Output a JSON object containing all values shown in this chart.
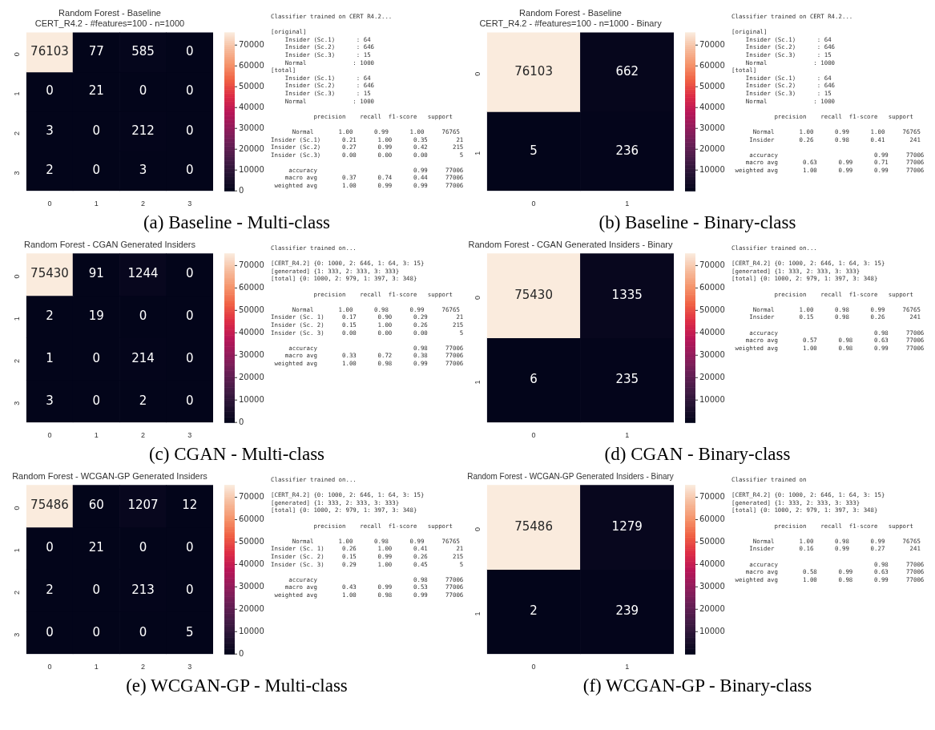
{
  "chart_data": [
    {
      "type": "heatmap",
      "title": "Random Forest - Baseline",
      "subtitle": "CERT_R4.2 - #features=100 - n=1000",
      "categories": [
        "0",
        "1",
        "2",
        "3"
      ],
      "y_categories": [
        "0",
        "1",
        "2",
        "3"
      ],
      "cells": [
        [
          76103,
          77,
          585,
          0
        ],
        [
          0,
          21,
          0,
          0
        ],
        [
          3,
          0,
          212,
          0
        ],
        [
          2,
          0,
          3,
          0
        ]
      ],
      "data_labels": true,
      "clim": [
        0,
        76103
      ],
      "cticks": [
        0,
        10000,
        20000,
        30000,
        40000,
        50000,
        60000,
        70000
      ],
      "annotations": [
        "(a) Baseline - Multi-class"
      ]
    },
    {
      "type": "other",
      "title": "Classifier trained on CERT R4.2...",
      "annotations": [
        "[original]\n    Insider (Sc.1)      : 64\n    Insider (Sc.2)      : 646\n    Insider (Sc.3)      : 15\n    Normal             : 1000\n[total]\n    Insider (Sc.1)      : 64\n    Insider (Sc.2)      : 646\n    Insider (Sc.3)      : 15\n    Normal             : 1000",
        "            precision    recall  f1-score   support",
        "      Normal       1.00      0.99      1.00     76765\nInsider (Sc.1)      0.21      1.00      0.35        21\nInsider (Sc.2)      0.27      0.99      0.42       215\nInsider (Sc.3)      0.00      0.00      0.00         5",
        "     accuracy                           0.99     77006\n    macro avg       0.37      0.74      0.44     77006\n weighted avg       1.00      0.99      0.99     77006"
      ]
    },
    {
      "type": "heatmap",
      "title": "Random Forest - Baseline",
      "subtitle": "CERT_R4.2 - #features=100 - n=1000 - Binary",
      "categories": [
        "0",
        "1"
      ],
      "y_categories": [
        "0",
        "1"
      ],
      "cells": [
        [
          76103,
          662
        ],
        [
          5,
          236
        ]
      ],
      "data_labels": true,
      "clim": [
        5,
        76103
      ],
      "cticks": [
        10000,
        20000,
        30000,
        40000,
        50000,
        60000,
        70000
      ],
      "annotations": [
        "(b) Baseline - Binary-class"
      ]
    },
    {
      "type": "other",
      "title": "Classifier trained on CERT R4.2...",
      "annotations": [
        "[original]\n    Insider (Sc.1)      : 64\n    Insider (Sc.2)      : 646\n    Insider (Sc.3)      : 15\n    Normal             : 1000\n[total]\n    Insider (Sc.1)      : 64\n    Insider (Sc.2)      : 646\n    Insider (Sc.3)      : 15\n    Normal             : 1000",
        "            precision    recall  f1-score   support",
        "      Normal       1.00      0.99      1.00     76765\n     Insider       0.26      0.98      0.41       241",
        "     accuracy                           0.99     77006\n    macro avg       0.63      0.99      0.71     77006\n weighted avg       1.00      0.99      0.99     77006"
      ]
    },
    {
      "type": "heatmap",
      "title": "Random Forest - CGAN Generated Insiders",
      "categories": [
        "0",
        "1",
        "2",
        "3"
      ],
      "y_categories": [
        "0",
        "1",
        "2",
        "3"
      ],
      "cells": [
        [
          75430,
          91,
          1244,
          0
        ],
        [
          2,
          19,
          0,
          0
        ],
        [
          1,
          0,
          214,
          0
        ],
        [
          3,
          0,
          2,
          0
        ]
      ],
      "data_labels": true,
      "clim": [
        0,
        75430
      ],
      "cticks": [
        0,
        10000,
        20000,
        30000,
        40000,
        50000,
        60000,
        70000
      ],
      "annotations": [
        "(c) CGAN - Multi-class"
      ]
    },
    {
      "type": "other",
      "title": "Classifier trained on...",
      "annotations": [
        "[CERT_R4.2] {0: 1000, 2: 646, 1: 64, 3: 15}\n[generated] {1: 333, 2: 333, 3: 333}\n[total] {0: 1000, 2: 979, 1: 397, 3: 348}",
        "            precision    recall  f1-score   support",
        "      Normal       1.00      0.98      0.99     76765\nInsider (Sc. 1)     0.17      0.90      0.29        21\nInsider (Sc. 2)     0.15      1.00      0.26       215\nInsider (Sc. 3)     0.00      0.00      0.00         5",
        "     accuracy                           0.98     77006\n    macro avg       0.33      0.72      0.38     77006\n weighted avg       1.00      0.98      0.99     77006"
      ]
    },
    {
      "type": "heatmap",
      "title": "Random Forest - CGAN Generated Insiders - Binary",
      "categories": [
        "0",
        "1"
      ],
      "y_categories": [
        "0",
        "1"
      ],
      "cells": [
        [
          75430,
          1335
        ],
        [
          6,
          235
        ]
      ],
      "data_labels": true,
      "clim": [
        6,
        75430
      ],
      "cticks": [
        10000,
        20000,
        30000,
        40000,
        50000,
        60000,
        70000
      ],
      "annotations": [
        "(d) CGAN - Binary-class"
      ]
    },
    {
      "type": "other",
      "title": "Classifier trained on...",
      "annotations": [
        "[CERT_R4.2] {0: 1000, 2: 646, 1: 64, 3: 15}\n[generated] {1: 333, 2: 333, 3: 333}\n[total] {0: 1000, 2: 979, 1: 397, 3: 348}",
        "            precision    recall  f1-score   support",
        "      Normal       1.00      0.98      0.99     76765\n     Insider       0.15      0.98      0.26       241",
        "     accuracy                           0.98     77006\n    macro avg       0.57      0.98      0.63     77006\n weighted avg       1.00      0.98      0.99     77006"
      ]
    },
    {
      "type": "heatmap",
      "title": "Random Forest - WCGAN-GP Generated Insiders",
      "categories": [
        "0",
        "1",
        "2",
        "3"
      ],
      "y_categories": [
        "0",
        "1",
        "2",
        "3"
      ],
      "cells": [
        [
          75486,
          60,
          1207,
          12
        ],
        [
          0,
          21,
          0,
          0
        ],
        [
          2,
          0,
          213,
          0
        ],
        [
          0,
          0,
          0,
          5
        ]
      ],
      "data_labels": true,
      "clim": [
        0,
        75486
      ],
      "cticks": [
        0,
        10000,
        20000,
        30000,
        40000,
        50000,
        60000,
        70000
      ],
      "annotations": [
        "(e) WCGAN-GP - Multi-class"
      ]
    },
    {
      "type": "other",
      "title": "Classifier trained on...",
      "annotations": [
        "[CERT_R4.2] {0: 1000, 2: 646, 1: 64, 3: 15}\n[generated] {1: 333, 2: 333, 3: 333}\n[total] {0: 1000, 2: 979, 1: 397, 3: 348}",
        "            precision    recall  f1-score   support",
        "      Normal       1.00      0.98      0.99     76765\nInsider (Sc. 1)     0.26      1.00      0.41        21\nInsider (Sc. 2)     0.15      0.99      0.26       215\nInsider (Sc. 3)     0.29      1.00      0.45         5",
        "     accuracy                           0.98     77006\n    macro avg       0.43      0.99      0.53     77006\n weighted avg       1.00      0.98      0.99     77006"
      ]
    },
    {
      "type": "heatmap",
      "title": "Random Forest - WCGAN-GP Generated Insiders - Binary",
      "categories": [
        "0",
        "1"
      ],
      "y_categories": [
        "0",
        "1"
      ],
      "cells": [
        [
          75486,
          1279
        ],
        [
          2,
          239
        ]
      ],
      "data_labels": true,
      "clim": [
        2,
        75486
      ],
      "cticks": [
        10000,
        20000,
        30000,
        40000,
        50000,
        60000,
        70000
      ],
      "annotations": [
        "(f) WCGAN-GP - Binary-class"
      ]
    },
    {
      "type": "other",
      "title": "Classifier trained on",
      "annotations": [
        "[CERT_R4.2] {0: 1000, 2: 646, 1: 64, 3: 15}\n[generated] {1: 333, 2: 333, 3: 333}\n[total] {0: 1000, 2: 979, 1: 397, 3: 348}",
        "            precision    recall  f1-score   support",
        "      Normal       1.00      0.98      0.99     76765\n     Insider       0.16      0.99      0.27       241",
        "     accuracy                           0.98     77006\n    macro avg       0.58      0.99      0.63     77006\n weighted avg       1.00      0.98      0.99     77006"
      ]
    }
  ]
}
